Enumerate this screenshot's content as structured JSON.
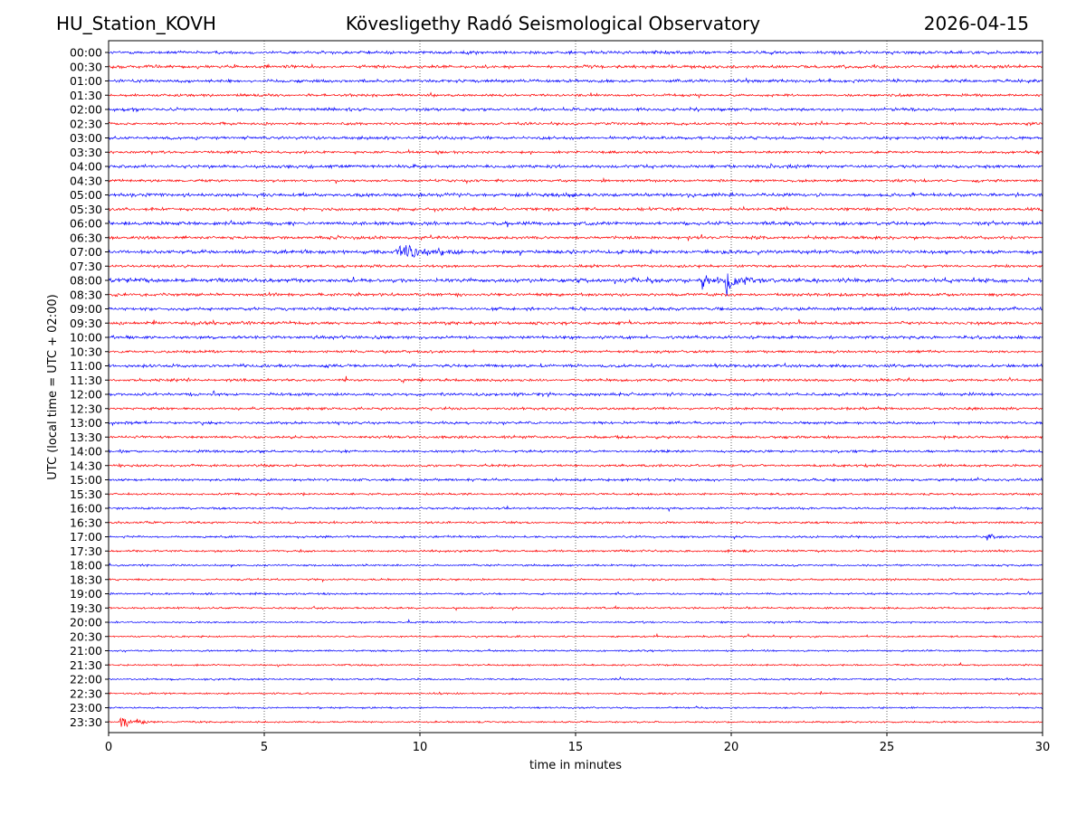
{
  "header": {
    "station": "HU_Station_KOVH",
    "observatory": "Kövesligethy Radó Seismological Observatory",
    "date": "2026-04-15"
  },
  "chart_data": {
    "type": "line",
    "title": "Kövesligethy Radó Seismological Observatory",
    "xlabel": "time in minutes",
    "ylabel": "UTC (local time = UTC + 02:00)",
    "xlim": [
      0,
      30
    ],
    "x_ticks": [
      0,
      5,
      10,
      15,
      20,
      25,
      30
    ],
    "x_tick_labels": [
      "0",
      "5",
      "10",
      "15",
      "20",
      "25",
      "30"
    ],
    "grid": "vertical dotted",
    "trace_colors": [
      "#0000ff",
      "#ff0000"
    ],
    "rows": [
      "00:00",
      "00:30",
      "01:00",
      "01:30",
      "02:00",
      "02:30",
      "03:00",
      "03:30",
      "04:00",
      "04:30",
      "05:00",
      "05:30",
      "06:00",
      "06:30",
      "07:00",
      "07:30",
      "08:00",
      "08:30",
      "09:00",
      "09:30",
      "10:00",
      "10:30",
      "11:00",
      "11:30",
      "12:00",
      "12:30",
      "13:00",
      "13:30",
      "14:00",
      "14:30",
      "15:00",
      "15:30",
      "16:00",
      "16:30",
      "17:00",
      "17:30",
      "18:00",
      "18:30",
      "19:00",
      "19:30",
      "20:00",
      "20:30",
      "21:00",
      "21:30",
      "22:00",
      "22:30",
      "23:00",
      "23:30"
    ],
    "noise_level": [
      0.35,
      0.35,
      0.35,
      0.3,
      0.35,
      0.3,
      0.35,
      0.3,
      0.35,
      0.3,
      0.4,
      0.35,
      0.4,
      0.35,
      0.4,
      0.3,
      0.45,
      0.35,
      0.35,
      0.35,
      0.35,
      0.3,
      0.35,
      0.3,
      0.35,
      0.3,
      0.3,
      0.3,
      0.28,
      0.28,
      0.3,
      0.25,
      0.25,
      0.25,
      0.25,
      0.25,
      0.22,
      0.22,
      0.22,
      0.22,
      0.2,
      0.2,
      0.2,
      0.2,
      0.2,
      0.2,
      0.2,
      0.2
    ],
    "events": [
      {
        "row": "07:00",
        "start_min": 9.2,
        "duration_min": 4.2,
        "amplitude": 2.6
      },
      {
        "row": "08:00",
        "start_min": 16.8,
        "duration_min": 2.2,
        "amplitude": 1.0
      },
      {
        "row": "08:00",
        "start_min": 19.05,
        "duration_min": 0.9,
        "amplitude": 4.6
      },
      {
        "row": "08:00",
        "start_min": 19.8,
        "duration_min": 2.0,
        "amplitude": 4.2
      },
      {
        "row": "17:00",
        "start_min": 28.2,
        "duration_min": 0.7,
        "amplitude": 2.3
      },
      {
        "row": "19:00",
        "start_min": 16.25,
        "duration_min": 0.6,
        "amplitude": 0.9
      },
      {
        "row": "23:30",
        "start_min": 0.35,
        "duration_min": 1.6,
        "amplitude": 2.6
      }
    ]
  }
}
